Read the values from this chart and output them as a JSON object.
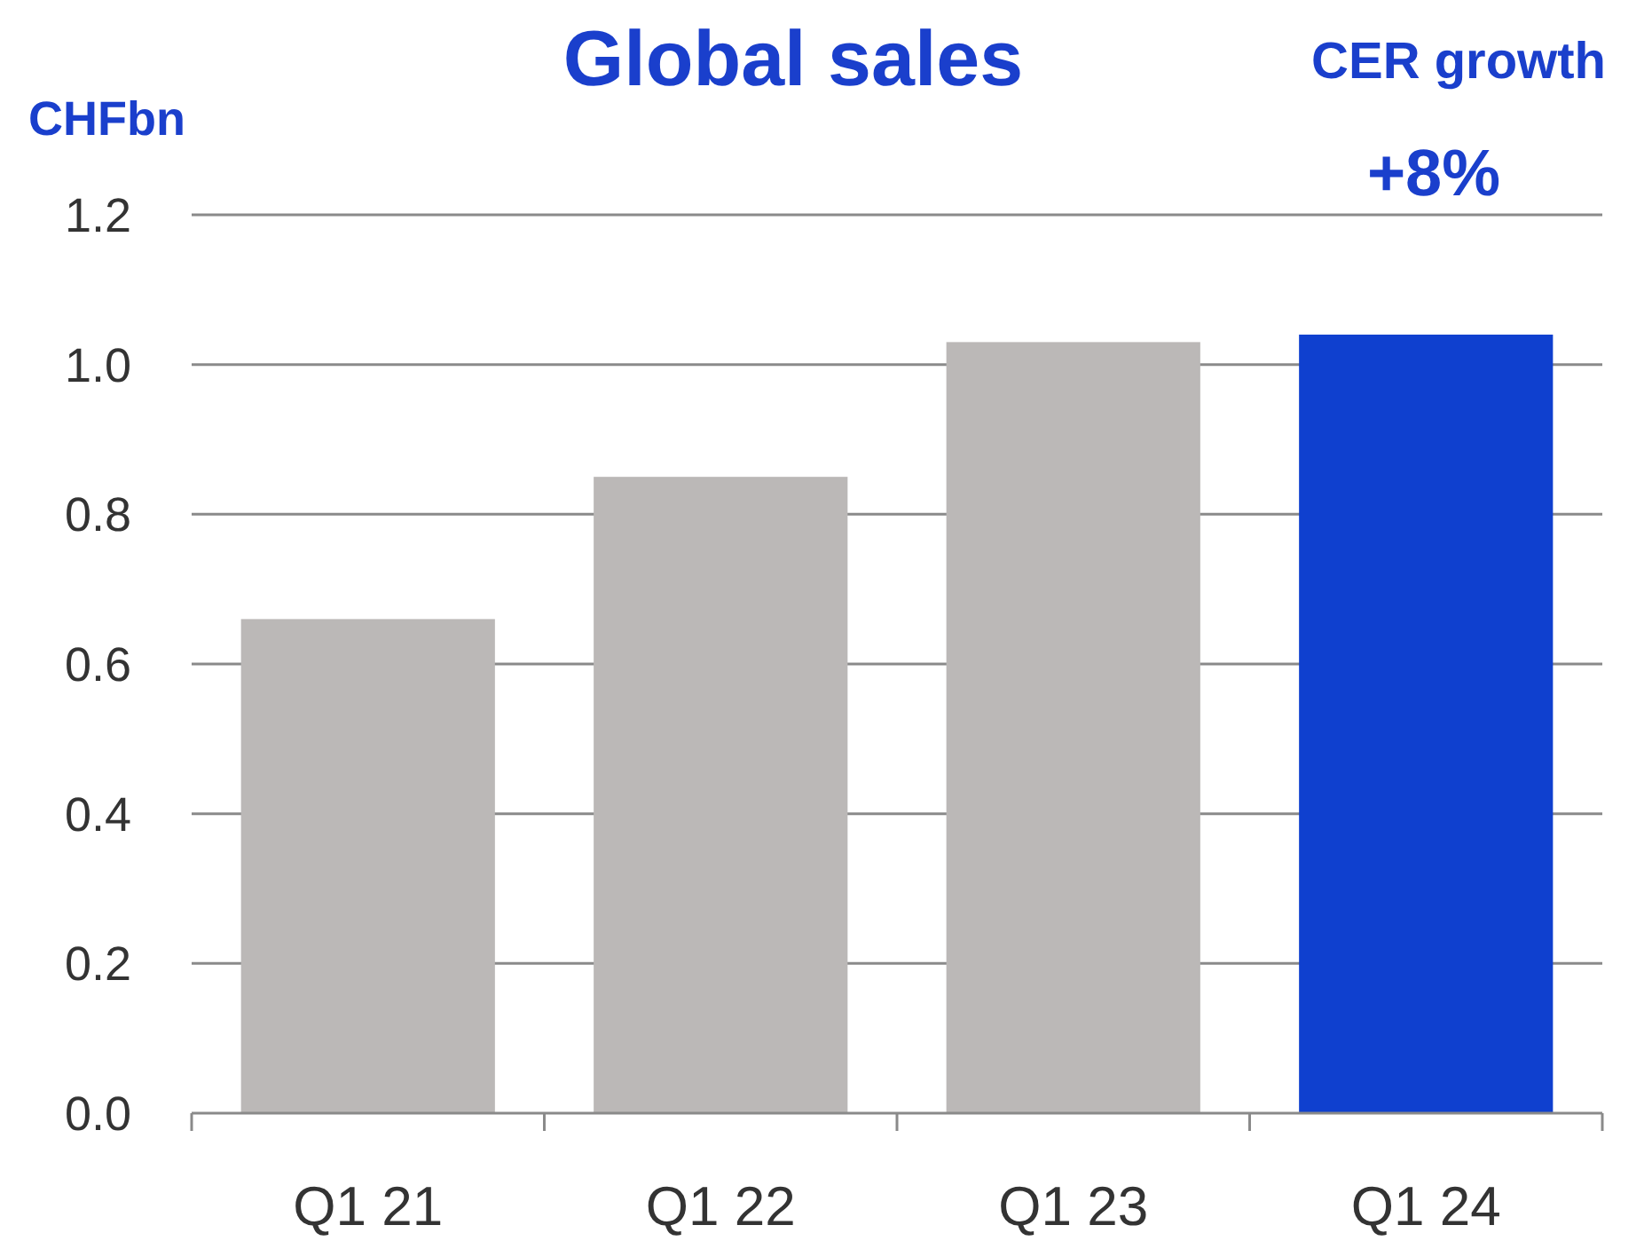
{
  "chart_data": {
    "type": "bar",
    "title": "Global sales",
    "ylabel": "CHFbn",
    "annotations": [
      "CER growth",
      "+8%"
    ],
    "categories": [
      "Q1 21",
      "Q1 22",
      "Q1 23",
      "Q1 24"
    ],
    "values": [
      0.66,
      0.85,
      1.03,
      1.04
    ],
    "colors": [
      "#bbb8b7",
      "#bbb8b7",
      "#bbb8b7",
      "#0f40cf"
    ],
    "ylim": [
      0,
      1.2
    ],
    "yticks": [
      {
        "value": 0,
        "label": "0.0"
      },
      0.2,
      0.4,
      0.6,
      0.8,
      {
        "value": 1,
        "label": "1.0"
      },
      1.2
    ],
    "grid": "y"
  }
}
